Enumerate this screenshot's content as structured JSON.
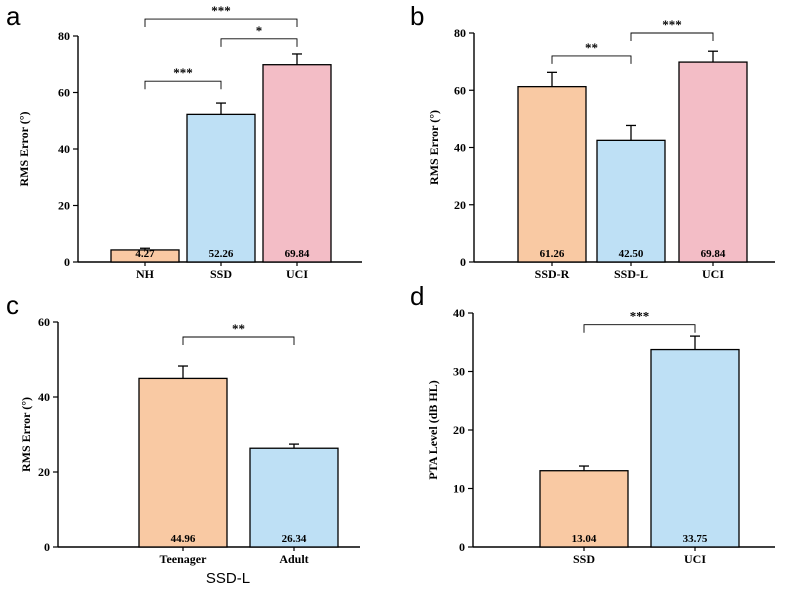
{
  "chart_data": [
    {
      "type": "bar",
      "panel": "a",
      "title": "",
      "xlabel": "",
      "ylabel": "RMS Error (°)",
      "ylim": [
        0,
        80
      ],
      "yticks": [
        0,
        20,
        40,
        60,
        80
      ],
      "categories": [
        "NH",
        "SSD",
        "UCI"
      ],
      "values": [
        4.27,
        52.26,
        69.84
      ],
      "value_labels": [
        "4.27",
        "52.26",
        "69.84"
      ],
      "errors": [
        0.6,
        4.0,
        3.8
      ],
      "colors": [
        "#F9C9A3",
        "#BEE0F5",
        "#F3BDC6"
      ],
      "significance": [
        {
          "from": 0,
          "to": 1,
          "label": "***",
          "level": 64
        },
        {
          "from": 1,
          "to": 2,
          "label": "*",
          "level": 79
        },
        {
          "from": 0,
          "to": 2,
          "label": "***",
          "level": 86
        }
      ]
    },
    {
      "type": "bar",
      "panel": "b",
      "title": "",
      "xlabel": "",
      "ylabel": "RMS Error (°)",
      "ylim": [
        0,
        80
      ],
      "yticks": [
        0,
        20,
        40,
        60,
        80
      ],
      "categories": [
        "SSD-R",
        "SSD-L",
        "UCI"
      ],
      "values": [
        61.26,
        42.5,
        69.84
      ],
      "value_labels": [
        "61.26",
        "42.50",
        "69.84"
      ],
      "errors": [
        5.0,
        5.2,
        3.8
      ],
      "colors": [
        "#F9C9A3",
        "#BEE0F5",
        "#F3BDC6"
      ],
      "significance": [
        {
          "from": 0,
          "to": 1,
          "label": "**",
          "level": 72
        },
        {
          "from": 1,
          "to": 2,
          "label": "***",
          "level": 80
        }
      ]
    },
    {
      "type": "bar",
      "panel": "c",
      "title": "",
      "xlabel": "SSD-L",
      "ylabel": "RMS Error (°)",
      "ylim": [
        0,
        60
      ],
      "yticks": [
        0,
        20,
        40,
        60
      ],
      "categories": [
        "Teenager",
        "Adult"
      ],
      "values": [
        44.96,
        26.34
      ],
      "value_labels": [
        "44.96",
        "26.34"
      ],
      "errors": [
        3.3,
        1.1
      ],
      "colors": [
        "#F9C9A3",
        "#BEE0F5"
      ],
      "significance": [
        {
          "from": 0,
          "to": 1,
          "label": "**",
          "level": 56
        }
      ]
    },
    {
      "type": "bar",
      "panel": "d",
      "title": "",
      "xlabel": "",
      "ylabel": "PTA Level (dB HL)",
      "ylim": [
        0,
        40
      ],
      "yticks": [
        0,
        10,
        20,
        30,
        40
      ],
      "categories": [
        "SSD",
        "UCI"
      ],
      "values": [
        13.04,
        33.75
      ],
      "value_labels": [
        "13.04",
        "33.75"
      ],
      "errors": [
        0.8,
        2.3
      ],
      "colors": [
        "#F9C9A3",
        "#BEE0F5"
      ],
      "significance": [
        {
          "from": 0,
          "to": 1,
          "label": "***",
          "level": 38
        }
      ]
    }
  ]
}
